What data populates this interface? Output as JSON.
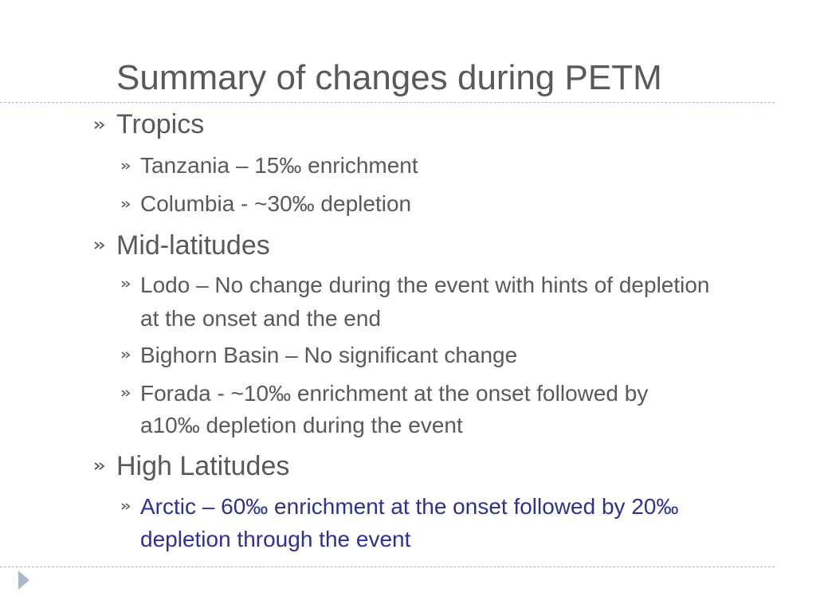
{
  "slide": {
    "title": "Summary of changes during PETM",
    "sections": [
      {
        "heading": "Tropics",
        "items": [
          {
            "text": "Tanzania – 15‰  enrichment"
          },
          {
            "text": "Columbia - ~30‰ depletion"
          }
        ]
      },
      {
        "heading": "Mid-latitudes",
        "items": [
          {
            "line1": "Lodo – No change during the event with hints of depletion",
            "line2": "at the onset and the end"
          },
          {
            "text": "Bighorn Basin – No significant change"
          },
          {
            "line1": "Forada - ~10‰ enrichment at the onset followed by",
            "line2": "a10‰ depletion during the event"
          }
        ]
      },
      {
        "heading": "High Latitudes",
        "items": [
          {
            "line1": "Arctic – 60‰ enrichment at the onset followed by 20‰",
            "line2": "depletion through the event"
          }
        ]
      }
    ]
  },
  "colors": {
    "text": "#595959",
    "accent_text": "#2e3192",
    "rule": "#a9b8cc",
    "nav_arrow": "#a9b8cc"
  },
  "icons": {
    "bullet": "wingding-bullet-icon",
    "nav": "play-arrow-icon"
  }
}
